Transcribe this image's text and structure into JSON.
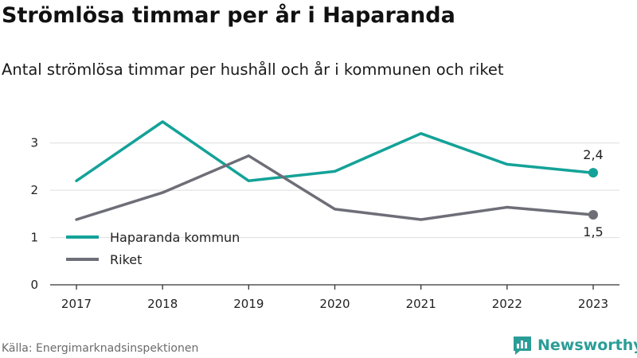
{
  "header": {
    "title": "Strömlösa timmar per år i Haparanda",
    "subtitle": "Antal strömlösa timmar per hushåll och år i kommunen och riket"
  },
  "footer": {
    "source": "Källa: Energimarknadsinspektionen",
    "brand": "Newsworthy",
    "brand_icon": "newsworthy-logo-icon"
  },
  "chart_data": {
    "type": "line",
    "title": "Strömlösa timmar per år i Haparanda",
    "subtitle": "Antal strömlösa timmar per hushåll och år i kommunen och riket",
    "xlabel": "",
    "ylabel": "",
    "x": [
      "2017",
      "2018",
      "2019",
      "2020",
      "2021",
      "2022",
      "2023"
    ],
    "yticks": [
      0,
      1,
      2,
      3
    ],
    "ylim": [
      0,
      3.5
    ],
    "grid": true,
    "legend_position": "bottom-left",
    "series": [
      {
        "name": "Haparanda kommun",
        "color": "#14a298",
        "values": [
          2.2,
          3.45,
          2.2,
          2.4,
          3.2,
          2.55,
          2.37
        ],
        "end_label": "2,4"
      },
      {
        "name": "Riket",
        "color": "#6e6e78",
        "values": [
          1.38,
          1.95,
          2.73,
          1.6,
          1.38,
          1.64,
          1.48
        ],
        "end_label": "1,5"
      }
    ]
  }
}
